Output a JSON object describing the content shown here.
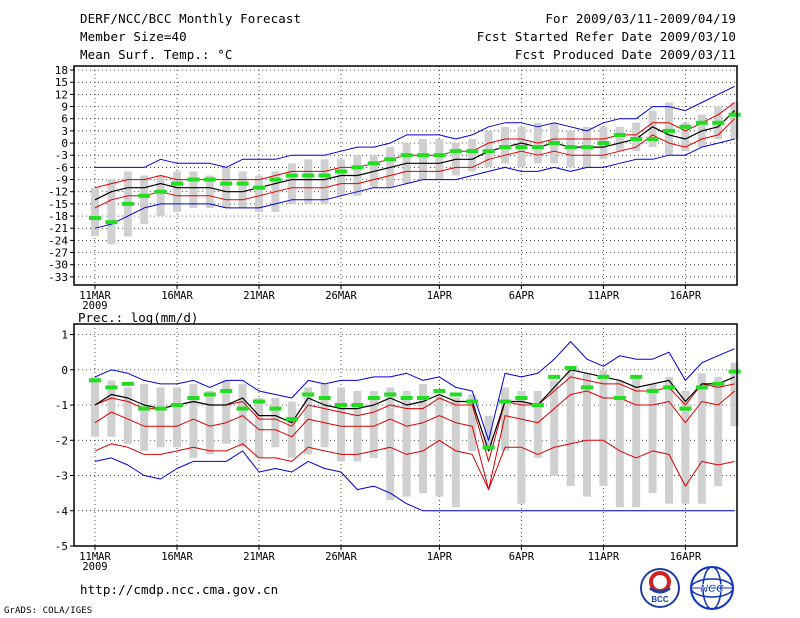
{
  "header": {
    "title": "DERF/NCC/BCC Monthly Forecast",
    "member_size": "Member Size=40",
    "variable": "Mean Surf. Temp.: °C",
    "period": "For 2009/03/11-2009/04/19",
    "started": "Fcst Started Refer Date 2009/03/10",
    "produced": "Fcst Produced Date 2009/03/11"
  },
  "footer": {
    "url": "http://cmdp.ncc.cma.gov.cn",
    "grads": "GrADS: COLA/IGES",
    "logo_bcc": "BCC",
    "logo_ncc": "NCC"
  },
  "colors": {
    "bar": "#d0d0d0",
    "envelope": "#0000dd",
    "spread": "#dd0000",
    "mean": "#000000",
    "obs": "#22dd22",
    "grid": "#000000"
  },
  "chart_data": [
    {
      "type": "line",
      "name": "temperature",
      "title": "Mean Surf. Temp.: °C",
      "x_day_range": [
        0,
        39
      ],
      "ylim": [
        -35,
        19
      ],
      "yticks": [
        18,
        15,
        12,
        9,
        6,
        3,
        0,
        -3,
        -6,
        -9,
        -12,
        -15,
        -18,
        -21,
        -24,
        -27,
        -30,
        -33
      ],
      "xticks": [
        {
          "day": 0,
          "label": "11MAR",
          "sub": "2009"
        },
        {
          "day": 5,
          "label": "16MAR"
        },
        {
          "day": 10,
          "label": "21MAR"
        },
        {
          "day": 15,
          "label": "26MAR"
        },
        {
          "day": 21,
          "label": "1APR"
        },
        {
          "day": 26,
          "label": "6APR"
        },
        {
          "day": 31,
          "label": "11APR"
        },
        {
          "day": 36,
          "label": "16APR"
        }
      ],
      "series": [
        {
          "name": "box_top",
          "values": [
            -11,
            -9,
            -7,
            -8,
            -8,
            -7,
            -7,
            -8,
            -6,
            -7,
            -8,
            -7,
            -5,
            -4,
            -4,
            -4,
            -3,
            -3,
            -1,
            0,
            1,
            1,
            0,
            1,
            3,
            4,
            4,
            5,
            5,
            3,
            4,
            4,
            4,
            5,
            8,
            10,
            5,
            7,
            9,
            10
          ]
        },
        {
          "name": "box_bottom",
          "values": [
            -23,
            -25,
            -23,
            -20,
            -18,
            -17,
            -16,
            -16,
            -16,
            -16,
            -17,
            -17,
            -15,
            -15,
            -15,
            -13,
            -13,
            -11,
            -11,
            -10,
            -9,
            -9,
            -8,
            -7,
            -6,
            -5,
            -6,
            -5,
            -5,
            -6,
            -6,
            -4,
            -2,
            -2,
            -1,
            -3,
            -2,
            -1,
            1,
            1
          ]
        },
        {
          "name": "ensemble_max",
          "values": [
            -6,
            -6,
            -6,
            -6,
            -4,
            -5,
            -5,
            -5,
            -6,
            -4,
            -4,
            -4,
            -3,
            -3,
            -3,
            -2,
            -1,
            -1,
            0,
            2,
            2,
            2,
            1,
            2,
            4,
            5,
            5,
            4,
            5,
            4,
            3,
            5,
            6,
            6,
            9,
            9,
            8,
            10,
            12,
            14
          ]
        },
        {
          "name": "upper_red",
          "values": [
            -11,
            -10,
            -9,
            -9,
            -8,
            -9,
            -9,
            -9,
            -9,
            -9,
            -9,
            -8,
            -7,
            -7,
            -7,
            -6,
            -6,
            -5,
            -4,
            -3,
            -3,
            -3,
            -2,
            -2,
            0,
            1,
            1,
            0,
            1,
            1,
            1,
            1,
            2,
            2,
            5,
            5,
            3,
            5,
            7,
            10
          ]
        },
        {
          "name": "ensemble_mean",
          "values": [
            -14,
            -12,
            -11,
            -11,
            -10,
            -11,
            -11,
            -11,
            -12,
            -12,
            -11,
            -10,
            -9,
            -9,
            -9,
            -8,
            -8,
            -7,
            -6,
            -5,
            -5,
            -5,
            -4,
            -4,
            -2,
            -1,
            0,
            -1,
            0,
            -1,
            -1,
            -1,
            0,
            1,
            4,
            2,
            1,
            3,
            4,
            8
          ]
        },
        {
          "name": "lower_red",
          "values": [
            -16,
            -14,
            -13,
            -13,
            -12,
            -13,
            -13,
            -13,
            -14,
            -14,
            -13,
            -12,
            -11,
            -11,
            -11,
            -10,
            -10,
            -9,
            -8,
            -7,
            -7,
            -7,
            -6,
            -6,
            -4,
            -3,
            -2,
            -3,
            -2,
            -3,
            -3,
            -3,
            -2,
            -1,
            2,
            0,
            -1,
            1,
            2,
            6
          ]
        },
        {
          "name": "ensemble_min",
          "values": [
            -21,
            -20,
            -18,
            -16,
            -15,
            -15,
            -15,
            -15,
            -16,
            -16,
            -16,
            -15,
            -14,
            -14,
            -14,
            -13,
            -12,
            -11,
            -11,
            -10,
            -9,
            -9,
            -9,
            -8,
            -7,
            -6,
            -7,
            -7,
            -6,
            -7,
            -6,
            -6,
            -5,
            -4,
            -4,
            -3,
            -3,
            -1,
            0,
            1
          ]
        },
        {
          "name": "observed",
          "values": [
            -18.5,
            -19.5,
            -15,
            -13,
            -12,
            -10,
            -9,
            -9,
            -10,
            -10,
            -11,
            -9,
            -8,
            -8,
            -8,
            -7,
            -6,
            -5,
            -4,
            -3,
            -3,
            -3,
            -2,
            -2,
            -2,
            -1,
            -1,
            -1,
            0,
            -1,
            -1,
            0,
            2,
            1,
            1,
            3,
            4,
            5,
            5,
            7
          ]
        }
      ]
    },
    {
      "type": "line",
      "name": "precipitation",
      "title": "Prec.: log(mm/d)",
      "x_day_range": [
        0,
        39
      ],
      "ylim": [
        -5,
        1.3
      ],
      "yticks": [
        1,
        0,
        -1,
        -2,
        -3,
        -4,
        -5
      ],
      "xticks": [
        {
          "day": 0,
          "label": "11MAR",
          "sub": "2009"
        },
        {
          "day": 5,
          "label": "16MAR"
        },
        {
          "day": 10,
          "label": "21MAR"
        },
        {
          "day": 15,
          "label": "26MAR"
        },
        {
          "day": 21,
          "label": "1APR"
        },
        {
          "day": 26,
          "label": "6APR"
        },
        {
          "day": 31,
          "label": "11APR"
        },
        {
          "day": 36,
          "label": "16APR"
        }
      ],
      "series": [
        {
          "name": "box_top",
          "values": [
            -0.2,
            -0.3,
            -0.5,
            -0.4,
            -0.5,
            -0.5,
            -0.4,
            -0.6,
            -0.3,
            -0.4,
            -0.8,
            -0.8,
            -0.9,
            -0.5,
            -0.4,
            -0.5,
            -0.6,
            -0.6,
            -0.5,
            -0.6,
            -0.4,
            -0.7,
            -0.8,
            -0.7,
            -1.3,
            -0.5,
            -0.6,
            -0.6,
            -0.3,
            0.1,
            -0.1,
            0.0,
            -0.3,
            -0.2,
            -0.4,
            -0.2,
            -0.6,
            -0.1,
            -0.2,
            0.2
          ]
        },
        {
          "name": "box_bottom",
          "values": [
            -1.9,
            -1.9,
            -2.1,
            -2.3,
            -2.2,
            -2.2,
            -2.5,
            -2.4,
            -2.1,
            -2.2,
            -2.5,
            -2.2,
            -2.5,
            -2.4,
            -2.2,
            -2.6,
            -2.6,
            -2.5,
            -3.7,
            -3.6,
            -3.5,
            -3.6,
            -3.9,
            -2.3,
            -2.3,
            -2.3,
            -3.8,
            -2.5,
            -3.0,
            -3.3,
            -3.6,
            -3.3,
            -3.9,
            -3.9,
            -3.5,
            -3.8,
            -3.8,
            -3.8,
            -3.3,
            -1.6
          ]
        },
        {
          "name": "ensemble_max",
          "values": [
            -0.2,
            0.0,
            -0.1,
            -0.3,
            -0.4,
            -0.4,
            -0.3,
            -0.5,
            -0.3,
            -0.3,
            -0.6,
            -0.7,
            -0.8,
            -0.3,
            -0.4,
            -0.3,
            -0.3,
            -0.2,
            -0.2,
            -0.1,
            -0.3,
            -0.2,
            -0.5,
            -0.6,
            -2.0,
            -0.1,
            -0.2,
            -0.1,
            0.3,
            0.8,
            0.3,
            0.1,
            0.4,
            0.3,
            0.3,
            0.5,
            -0.3,
            0.2,
            0.4,
            0.6
          ]
        },
        {
          "name": "upper_red",
          "values": [
            -1.0,
            -0.8,
            -0.9,
            -1.1,
            -1.1,
            -1.0,
            -0.9,
            -1.0,
            -1.0,
            -0.9,
            -1.4,
            -1.4,
            -1.6,
            -1.0,
            -1.1,
            -1.2,
            -1.3,
            -1.2,
            -1.0,
            -1.1,
            -1.1,
            -0.8,
            -1.0,
            -1.0,
            -2.6,
            -0.9,
            -1.0,
            -1.0,
            -0.6,
            -0.2,
            -0.3,
            -0.4,
            -0.4,
            -0.6,
            -0.6,
            -0.5,
            -1.0,
            -0.4,
            -0.5,
            -0.4
          ]
        },
        {
          "name": "ensemble_mean",
          "values": [
            -1.0,
            -0.7,
            -0.8,
            -1.0,
            -1.1,
            -1.0,
            -0.9,
            -1.0,
            -1.0,
            -0.8,
            -1.3,
            -1.3,
            -1.5,
            -0.8,
            -1.0,
            -1.1,
            -1.1,
            -1.0,
            -0.8,
            -1.0,
            -0.9,
            -0.7,
            -0.9,
            -0.9,
            -2.3,
            -0.9,
            -0.9,
            -1.0,
            -0.5,
            0.0,
            -0.1,
            -0.2,
            -0.3,
            -0.5,
            -0.4,
            -0.3,
            -0.9,
            -0.4,
            -0.4,
            -0.2
          ]
        },
        {
          "name": "lower_red",
          "values": [
            -1.5,
            -1.2,
            -1.4,
            -1.6,
            -1.6,
            -1.6,
            -1.4,
            -1.6,
            -1.5,
            -1.3,
            -1.7,
            -1.7,
            -1.9,
            -1.4,
            -1.5,
            -1.6,
            -1.6,
            -1.6,
            -1.4,
            -1.6,
            -1.5,
            -1.3,
            -1.5,
            -1.6,
            -3.4,
            -1.3,
            -1.4,
            -1.5,
            -1.1,
            -0.7,
            -0.6,
            -0.8,
            -0.8,
            -1.0,
            -1.0,
            -0.9,
            -1.5,
            -0.9,
            -1.0,
            -0.6
          ]
        },
        {
          "name": "lower_red_2",
          "values": [
            -2.3,
            -2.1,
            -2.2,
            -2.4,
            -2.4,
            -2.3,
            -2.2,
            -2.3,
            -2.3,
            -2.1,
            -2.5,
            -2.5,
            -2.6,
            -2.2,
            -2.3,
            -2.4,
            -2.4,
            -2.3,
            -2.2,
            -2.4,
            -2.3,
            -2.0,
            -2.3,
            -2.4,
            -3.4,
            -2.2,
            -2.2,
            -2.4,
            -2.2,
            -2.1,
            -2.0,
            -2.0,
            -2.3,
            -2.5,
            -2.3,
            -2.4,
            -3.3,
            -2.6,
            -2.7,
            -2.6
          ]
        },
        {
          "name": "ensemble_min",
          "values": [
            -2.6,
            -2.5,
            -2.7,
            -3.0,
            -3.1,
            -2.8,
            -2.6,
            -2.6,
            -2.6,
            -2.3,
            -2.9,
            -2.8,
            -2.9,
            -2.6,
            -2.8,
            -2.9,
            -3.4,
            -3.3,
            -3.5,
            -3.8,
            -4.0,
            -4.0,
            -4.0,
            -4.0,
            -4.0,
            -4.0,
            -4.0,
            -4.0,
            -4.0,
            -4.0,
            -4.0,
            -4.0,
            -4.0,
            -4.0,
            -4.0,
            -4.0,
            -4.0,
            -4.0,
            -4.0,
            -4.0
          ]
        },
        {
          "name": "observed",
          "values": [
            -0.3,
            -0.5,
            -0.4,
            -1.1,
            -1.1,
            -1.0,
            -0.8,
            -0.7,
            -0.6,
            -1.1,
            -0.9,
            -1.1,
            -1.4,
            -0.7,
            -0.8,
            -1.0,
            -1.0,
            -0.8,
            -0.7,
            -0.8,
            -0.8,
            -0.6,
            -0.7,
            -0.9,
            -2.2,
            -0.9,
            -0.8,
            -1.0,
            -0.2,
            0.05,
            -0.5,
            -0.2,
            -0.8,
            -0.2,
            -0.6,
            -0.5,
            -1.1,
            -0.5,
            -0.4,
            -0.05
          ]
        }
      ]
    }
  ]
}
